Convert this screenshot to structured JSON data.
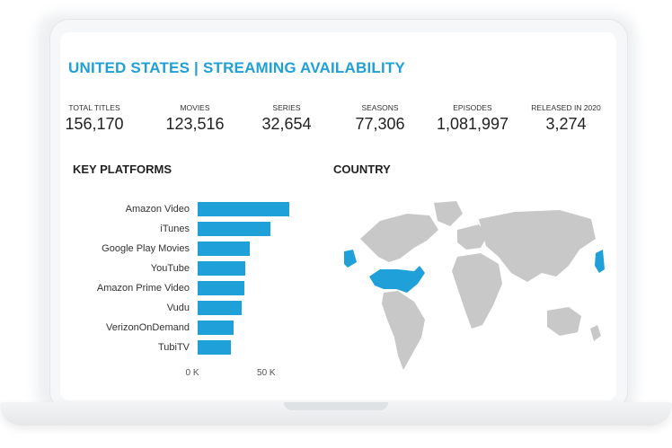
{
  "dashboard": {
    "title": "UNITED STATES | STREAMING AVAILABILITY",
    "kpis": [
      {
        "label": "TOTAL TITLES",
        "value": "156,170"
      },
      {
        "label": "MOVIES",
        "value": "123,516"
      },
      {
        "label": "SERIES",
        "value": "32,654"
      },
      {
        "label": "SEASONS",
        "value": "77,306"
      },
      {
        "label": "EPISODES",
        "value": "1,081,997"
      },
      {
        "label": "RELEASED IN 2020",
        "value": "3,274"
      }
    ],
    "platforms_title": "KEY PLATFORMS",
    "country_title": "COUNTRY"
  },
  "colors": {
    "accent": "#1fa0d8",
    "land": "#c8c8c8"
  },
  "chart_data": {
    "type": "bar",
    "orientation": "horizontal",
    "categories": [
      "Amazon Video",
      "iTunes",
      "Google Play Movies",
      "YouTube",
      "Amazon Prime Video",
      "Vudu",
      "VerizonOnDemand",
      "TubiTV"
    ],
    "values": [
      62000,
      49000,
      35000,
      32000,
      31500,
      29500,
      24500,
      22500
    ],
    "tick_labels": [
      "0 K",
      "50 K"
    ],
    "xlim": [
      0,
      65000
    ]
  }
}
